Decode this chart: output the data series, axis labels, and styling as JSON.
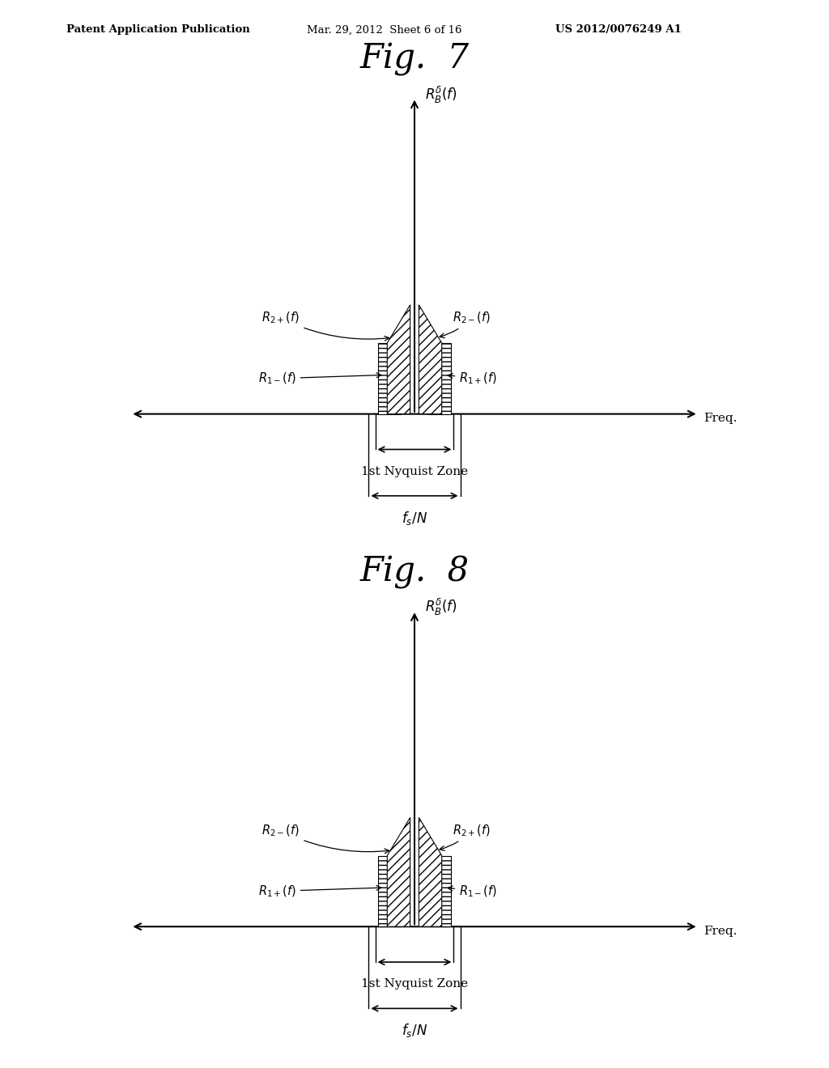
{
  "fig_title1": "Fig.  7",
  "fig_title2": "Fig.  8",
  "header_left": "Patent Application Publication",
  "header_mid": "Mar. 29, 2012  Sheet 6 of 16",
  "header_right": "US 2012/0076249 A1",
  "yaxis_label": "$R_B^\\delta( f )$",
  "xaxis_label": "Freq.",
  "nyquist_label": "1st Nyquist Zone",
  "fs_label": "$f_s/N$",
  "background_color": "#ffffff",
  "fig7": {
    "left_tall_label": "$R_{2+}( f )$",
    "left_short_label": "$R_{1-}( f )$",
    "right_tall_label": "$R_{2-}( f )$",
    "right_short_label": "$R_{1+}( f )$"
  },
  "fig8": {
    "left_tall_label": "$R_{2-}( f )$",
    "left_short_label": "$R_{1+}( f )$",
    "right_tall_label": "$R_{2+}( f )$",
    "right_short_label": "$R_{1-}( f )$"
  }
}
